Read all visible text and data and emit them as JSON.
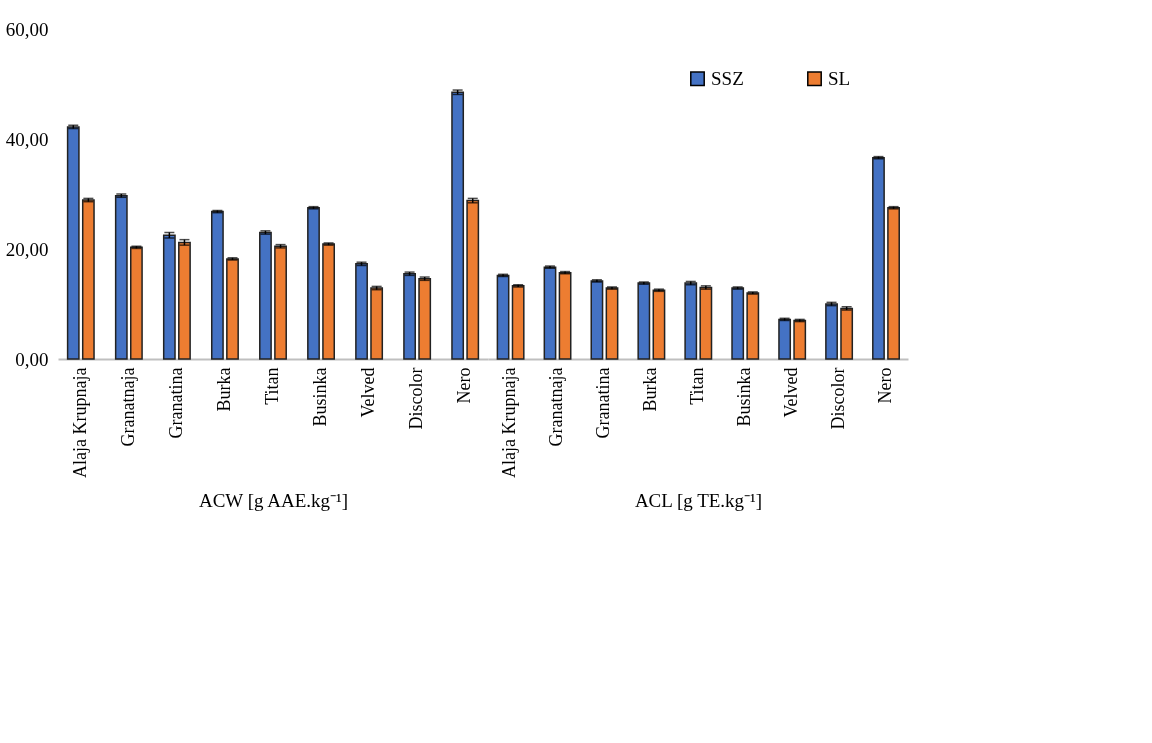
{
  "chart_data": [
    {
      "type": "bar",
      "xlabel": "ACW [g AAE.kg⁻¹]",
      "categories": [
        "Alaja Krupnaja",
        "Granatnaja",
        "Granatina",
        "Burka",
        "Titan",
        "Businka",
        "Velved",
        "Discolor",
        "Nero"
      ],
      "ylim": [
        0,
        60
      ],
      "yticks": [
        {
          "value": 0,
          "label": "0,00"
        },
        {
          "value": 20,
          "label": "20,00"
        },
        {
          "value": 40,
          "label": "40,00"
        },
        {
          "value": 60,
          "label": "60,00"
        }
      ],
      "grid": false,
      "legend": "top right",
      "series": [
        {
          "name": "SSZ",
          "color": "#4472c4",
          "values": [
            42.2,
            29.7,
            22.5,
            26.8,
            23.0,
            27.5,
            17.3,
            15.5,
            48.5
          ],
          "errors": [
            0.3,
            0.3,
            0.5,
            0.2,
            0.3,
            0.2,
            0.3,
            0.3,
            0.4
          ]
        },
        {
          "name": "SL",
          "color": "#ed7d31",
          "values": [
            28.9,
            20.3,
            21.2,
            18.2,
            20.5,
            20.9,
            12.9,
            14.6,
            28.8
          ],
          "errors": [
            0.3,
            0.2,
            0.5,
            0.2,
            0.3,
            0.2,
            0.3,
            0.3,
            0.4
          ]
        }
      ]
    },
    {
      "type": "bar",
      "xlabel": "ACL [g TE.kg⁻¹]",
      "categories": [
        "Alaja Krupnaja",
        "Granatnaja",
        "Granatina",
        "Burka",
        "Titan",
        "Businka",
        "Velved",
        "Discolor",
        "Nero"
      ],
      "ylim": [
        0,
        60
      ],
      "tick_labels": "x",
      "grid": false,
      "legend": "top right",
      "series": [
        {
          "name": "SSZ",
          "color": "#4472c4",
          "values": [
            15.2,
            16.7,
            14.2,
            13.8,
            13.8,
            12.9,
            7.2,
            10.0,
            36.6
          ],
          "errors": [
            0.2,
            0.2,
            0.2,
            0.2,
            0.3,
            0.2,
            0.2,
            0.3,
            0.2
          ]
        },
        {
          "name": "SL",
          "color": "#ed7d31",
          "values": [
            13.3,
            15.7,
            12.9,
            12.5,
            13.0,
            12.0,
            7.0,
            9.2,
            27.5
          ],
          "errors": [
            0.2,
            0.2,
            0.2,
            0.2,
            0.3,
            0.2,
            0.2,
            0.3,
            0.2
          ]
        }
      ]
    }
  ]
}
